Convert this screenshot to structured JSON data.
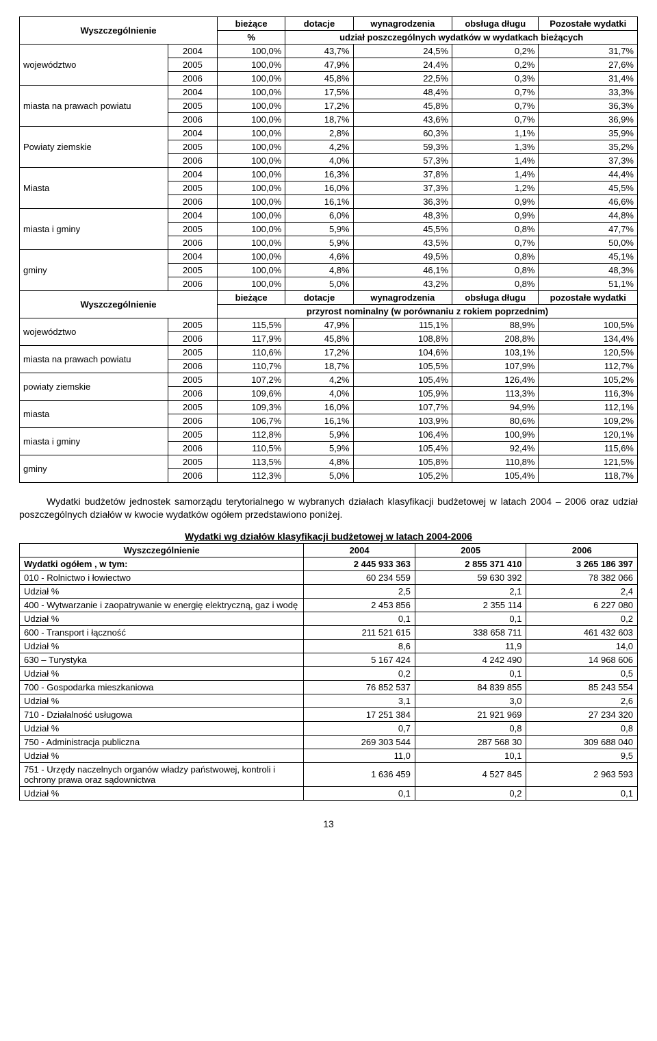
{
  "t1": {
    "head": {
      "wysz": "Wyszczególnienie",
      "biez": "bieżące",
      "dot": "dotacje",
      "wyn": "wynagrodzenia",
      "obs": "obsługa długu",
      "poz": "Pozostałe wydatki",
      "pct": "%",
      "udz": "udział poszczególnych wydatków w wydatkach bieżących"
    },
    "groups": [
      {
        "label": "województwo",
        "rows": [
          [
            "2004",
            "100,0%",
            "43,7%",
            "24,5%",
            "0,2%",
            "31,7%"
          ],
          [
            "2005",
            "100,0%",
            "47,9%",
            "24,4%",
            "0,2%",
            "27,6%"
          ],
          [
            "2006",
            "100,0%",
            "45,8%",
            "22,5%",
            "0,3%",
            "31,4%"
          ]
        ]
      },
      {
        "label": "miasta na prawach powiatu",
        "rows": [
          [
            "2004",
            "100,0%",
            "17,5%",
            "48,4%",
            "0,7%",
            "33,3%"
          ],
          [
            "2005",
            "100,0%",
            "17,2%",
            "45,8%",
            "0,7%",
            "36,3%"
          ],
          [
            "2006",
            "100,0%",
            "18,7%",
            "43,6%",
            "0,7%",
            "36,9%"
          ]
        ]
      },
      {
        "label": "Powiaty ziemskie",
        "rows": [
          [
            "2004",
            "100,0%",
            "2,8%",
            "60,3%",
            "1,1%",
            "35,9%"
          ],
          [
            "2005",
            "100,0%",
            "4,2%",
            "59,3%",
            "1,3%",
            "35,2%"
          ],
          [
            "2006",
            "100,0%",
            "4,0%",
            "57,3%",
            "1,4%",
            "37,3%"
          ]
        ]
      },
      {
        "label": "Miasta",
        "rows": [
          [
            "2004",
            "100,0%",
            "16,3%",
            "37,8%",
            "1,4%",
            "44,4%"
          ],
          [
            "2005",
            "100,0%",
            "16,0%",
            "37,3%",
            "1,2%",
            "45,5%"
          ],
          [
            "2006",
            "100,0%",
            "16,1%",
            "36,3%",
            "0,9%",
            "46,6%"
          ]
        ]
      },
      {
        "label": "miasta i gminy",
        "rows": [
          [
            "2004",
            "100,0%",
            "6,0%",
            "48,3%",
            "0,9%",
            "44,8%"
          ],
          [
            "2005",
            "100,0%",
            "5,9%",
            "45,5%",
            "0,8%",
            "47,7%"
          ],
          [
            "2006",
            "100,0%",
            "5,9%",
            "43,5%",
            "0,7%",
            "50,0%"
          ]
        ]
      },
      {
        "label": "gminy",
        "rows": [
          [
            "2004",
            "100,0%",
            "4,6%",
            "49,5%",
            "0,8%",
            "45,1%"
          ],
          [
            "2005",
            "100,0%",
            "4,8%",
            "46,1%",
            "0,8%",
            "48,3%"
          ],
          [
            "2006",
            "100,0%",
            "5,0%",
            "43,2%",
            "0,8%",
            "51,1%"
          ]
        ]
      }
    ],
    "head2": {
      "wysz": "Wyszczególnienie",
      "biez": "bieżące",
      "dot": "dotacje",
      "wyn": "wynagrodzenia",
      "obs": "obsługa długu",
      "poz": "pozostałe wydatki",
      "sub": "przyrost nominalny (w porównaniu z rokiem poprzednim)"
    },
    "groups2": [
      {
        "label": "województwo",
        "rows": [
          [
            "2005",
            "115,5%",
            "47,9%",
            "115,1%",
            "88,9%",
            "100,5%"
          ],
          [
            "2006",
            "117,9%",
            "45,8%",
            "108,8%",
            "208,8%",
            "134,4%"
          ]
        ]
      },
      {
        "label": "miasta na prawach powiatu",
        "rows": [
          [
            "2005",
            "110,6%",
            "17,2%",
            "104,6%",
            "103,1%",
            "120,5%"
          ],
          [
            "2006",
            "110,7%",
            "18,7%",
            "105,5%",
            "107,9%",
            "112,7%"
          ]
        ]
      },
      {
        "label": "powiaty ziemskie",
        "rows": [
          [
            "2005",
            "107,2%",
            "4,2%",
            "105,4%",
            "126,4%",
            "105,2%"
          ],
          [
            "2006",
            "109,6%",
            "4,0%",
            "105,9%",
            "113,3%",
            "116,3%"
          ]
        ]
      },
      {
        "label": "miasta",
        "rows": [
          [
            "2005",
            "109,3%",
            "16,0%",
            "107,7%",
            "94,9%",
            "112,1%"
          ],
          [
            "2006",
            "106,7%",
            "16,1%",
            "103,9%",
            "80,6%",
            "109,2%"
          ]
        ]
      },
      {
        "label": "miasta i gminy",
        "rows": [
          [
            "2005",
            "112,8%",
            "5,9%",
            "106,4%",
            "100,9%",
            "120,1%"
          ],
          [
            "2006",
            "110,5%",
            "5,9%",
            "105,4%",
            "92,4%",
            "115,6%"
          ]
        ]
      },
      {
        "label": "gminy",
        "rows": [
          [
            "2005",
            "113,5%",
            "4,8%",
            "105,8%",
            "110,8%",
            "121,5%"
          ],
          [
            "2006",
            "112,3%",
            "5,0%",
            "105,2%",
            "105,4%",
            "118,7%"
          ]
        ]
      }
    ]
  },
  "para": "Wydatki budżetów jednostek samorządu terytorialnego w wybranych działach klasyfikacji budżetowej w latach 2004 – 2006 oraz udział poszczególnych działów w kwocie wydatków ogółem przedstawiono poniżej.",
  "t2": {
    "title": "Wydatki wg działów klasyfikacji budżetowej w latach 2004-2006",
    "head": [
      "Wyszczególnienie",
      "2004",
      "2005",
      "2006"
    ],
    "rows": [
      {
        "bold": true,
        "cells": [
          "Wydatki ogółem , w tym:",
          "2 445 933 363",
          "2 855 371 410",
          "3 265 186 397"
        ]
      },
      {
        "cells": [
          "010 - Rolnictwo i łowiectwo",
          "60 234 559",
          "59 630 392",
          "78 382 066"
        ]
      },
      {
        "cells": [
          "Udział %",
          "2,5",
          "2,1",
          "2,4"
        ]
      },
      {
        "cells": [
          "400 - Wytwarzanie i zaopatrywanie w energię elektryczną, gaz i wodę",
          "2 453 856",
          "2 355 114",
          "6 227 080"
        ]
      },
      {
        "cells": [
          "Udział %",
          "0,1",
          "0,1",
          "0,2"
        ]
      },
      {
        "cells": [
          "600 - Transport i łączność",
          "211 521 615",
          "338 658 711",
          "461 432 603"
        ]
      },
      {
        "cells": [
          "Udział %",
          "8,6",
          "11,9",
          "14,0"
        ]
      },
      {
        "cells": [
          "630 – Turystyka",
          "5 167 424",
          "4 242 490",
          "14 968 606"
        ]
      },
      {
        "cells": [
          "Udział %",
          "0,2",
          "0,1",
          "0,5"
        ]
      },
      {
        "cells": [
          "700 - Gospodarka mieszkaniowa",
          "76 852 537",
          "84 839 855",
          "85 243 554"
        ]
      },
      {
        "cells": [
          "Udział %",
          "3,1",
          "3,0",
          "2,6"
        ]
      },
      {
        "cells": [
          "710 - Działalność usługowa",
          "17 251 384",
          "21 921 969",
          "27 234 320"
        ]
      },
      {
        "cells": [
          "Udział %",
          "0,7",
          "0,8",
          "0,8"
        ]
      },
      {
        "cells": [
          "750 - Administracja publiczna",
          "269 303 544",
          "287 568 30",
          "309 688 040"
        ]
      },
      {
        "cells": [
          "Udział %",
          "11,0",
          "10,1",
          "9,5"
        ]
      },
      {
        "cells": [
          "751 - Urzędy naczelnych organów władzy państwowej, kontroli i ochrony prawa oraz sądownictwa",
          "1 636 459",
          "4 527 845",
          "2 963 593"
        ]
      },
      {
        "cells": [
          "Udział %",
          "0,1",
          "0,2",
          "0,1"
        ]
      }
    ]
  },
  "pagenum": "13",
  "style": {
    "col_widths_t1": [
      "24%",
      "8%",
      "11%",
      "11%",
      "16%",
      "14%",
      "16%"
    ],
    "col_widths_t2": [
      "46%",
      "18%",
      "18%",
      "18%"
    ]
  }
}
